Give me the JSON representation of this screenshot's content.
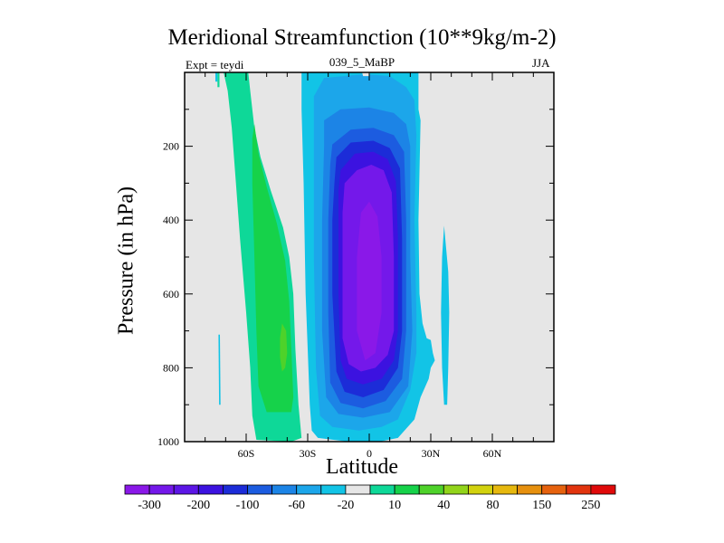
{
  "chart_data": {
    "type": "filled-contour",
    "title": "Meridional Streamfunction (10**9kg/m-2)",
    "subtitle_left": "Expt = teydi",
    "subtitle_center": "039_5_MaBP",
    "subtitle_right": "JJA",
    "xlabel": "Latitude",
    "ylabel": "Pressure (in hPa)",
    "xlim": [
      -90,
      90
    ],
    "ylim": [
      0,
      1000
    ],
    "x_ticks": [
      {
        "value": -60,
        "label": "60S"
      },
      {
        "value": -30,
        "label": "30S"
      },
      {
        "value": 0,
        "label": "0"
      },
      {
        "value": 30,
        "label": "30N"
      },
      {
        "value": 60,
        "label": "60N"
      }
    ],
    "y_ticks": [
      {
        "value": 200,
        "label": "200"
      },
      {
        "value": 400,
        "label": "400"
      },
      {
        "value": 600,
        "label": "600"
      },
      {
        "value": 800,
        "label": "800"
      },
      {
        "value": 1000,
        "label": "1000"
      }
    ],
    "background_color": "#e6e6e6",
    "colorbar": {
      "colors": [
        "#8a18e8",
        "#7418ea",
        "#5c16e6",
        "#3c12e0",
        "#1c2cd8",
        "#1c5ce0",
        "#1c84e6",
        "#1ca6ea",
        "#12c4e6",
        "#e6e6e6",
        "#0ed898",
        "#16d24a",
        "#4ed22a",
        "#92d41a",
        "#d2d20e",
        "#e6b80e",
        "#e6900e",
        "#e6620e",
        "#e2340e",
        "#e00a0a"
      ],
      "tick_labels": [
        {
          "index": 1,
          "label": "-300"
        },
        {
          "index": 3,
          "label": "-200"
        },
        {
          "index": 5,
          "label": "-100"
        },
        {
          "index": 7,
          "label": "-60"
        },
        {
          "index": 9,
          "label": "-20"
        },
        {
          "index": 11,
          "label": "10"
        },
        {
          "index": 13,
          "label": "40"
        },
        {
          "index": 15,
          "label": "80"
        },
        {
          "index": 17,
          "label": "150"
        },
        {
          "index": 19,
          "label": "250"
        }
      ]
    },
    "regions": [
      {
        "name": "north-cell-outer",
        "level": 10,
        "color": "#0ed898",
        "points": [
          [
            -71,
            0
          ],
          [
            -59,
            0
          ],
          [
            -58,
            50
          ],
          [
            -56,
            150
          ],
          [
            -53,
            230
          ],
          [
            -48,
            320
          ],
          [
            -42,
            420
          ],
          [
            -39,
            500
          ],
          [
            -37,
            600
          ],
          [
            -36,
            750
          ],
          [
            -34.5,
            900
          ],
          [
            -33,
            990
          ],
          [
            -38,
            1000
          ],
          [
            -55,
            995
          ],
          [
            -57,
            930
          ],
          [
            -58,
            800
          ],
          [
            -60,
            650
          ],
          [
            -63,
            450
          ],
          [
            -65,
            300
          ],
          [
            -67,
            150
          ],
          [
            -69,
            50
          ]
        ]
      },
      {
        "name": "north-cell-inner",
        "level": 40,
        "color": "#16d24a",
        "points": [
          [
            -56,
            140
          ],
          [
            -54,
            220
          ],
          [
            -50,
            310
          ],
          [
            -45,
            410
          ],
          [
            -41,
            510
          ],
          [
            -39,
            620
          ],
          [
            -38,
            750
          ],
          [
            -37,
            880
          ],
          [
            -38,
            920
          ],
          [
            -50,
            920
          ],
          [
            -54,
            850
          ],
          [
            -55,
            700
          ],
          [
            -56,
            500
          ],
          [
            -57,
            300
          ],
          [
            -57,
            180
          ]
        ]
      },
      {
        "name": "north-cell-core",
        "level": 80,
        "color": "#4ed22a",
        "points": [
          [
            -42.5,
            680
          ],
          [
            -40.5,
            700
          ],
          [
            -40,
            760
          ],
          [
            -41,
            800
          ],
          [
            -42.5,
            810
          ],
          [
            -43.5,
            770
          ],
          [
            -43.5,
            720
          ]
        ]
      },
      {
        "name": "south-cell-l1",
        "level": -20,
        "color": "#12c4e6",
        "points": [
          [
            -33,
            0
          ],
          [
            24,
            0
          ],
          [
            24,
            100
          ],
          [
            25,
            130
          ],
          [
            24,
            400
          ],
          [
            24.5,
            600
          ],
          [
            26,
            680
          ],
          [
            27,
            700
          ],
          [
            28,
            720
          ],
          [
            30,
            725
          ],
          [
            31,
            760
          ],
          [
            32,
            780
          ],
          [
            30,
            800
          ],
          [
            29,
            830
          ],
          [
            25,
            880
          ],
          [
            22,
            940
          ],
          [
            14,
            990
          ],
          [
            5,
            1000
          ],
          [
            -10,
            1000
          ],
          [
            -25,
            990
          ],
          [
            -28,
            970
          ],
          [
            -29,
            900
          ],
          [
            -31,
            600
          ],
          [
            -32,
            300
          ],
          [
            -33,
            100
          ]
        ]
      },
      {
        "name": "south-cell-l2",
        "level": -60,
        "color": "#1ca6ea",
        "points": [
          [
            -27,
            65
          ],
          [
            -22,
            15
          ],
          [
            -2,
            5
          ],
          [
            10,
            10
          ],
          [
            18,
            40
          ],
          [
            22,
            75
          ],
          [
            23,
            170
          ],
          [
            22,
            400
          ],
          [
            23,
            650
          ],
          [
            23,
            760
          ],
          [
            20,
            860
          ],
          [
            14,
            940
          ],
          [
            6,
            960
          ],
          [
            -5,
            970
          ],
          [
            -18,
            960
          ],
          [
            -24,
            930
          ],
          [
            -26,
            800
          ],
          [
            -27,
            500
          ],
          [
            -27,
            200
          ]
        ]
      },
      {
        "name": "south-cell-l3",
        "level": -100,
        "color": "#1c84e6",
        "points": [
          [
            -22,
            130
          ],
          [
            -14,
            100
          ],
          [
            0,
            95
          ],
          [
            12,
            110
          ],
          [
            18,
            140
          ],
          [
            20,
            200
          ],
          [
            20,
            500
          ],
          [
            21,
            700
          ],
          [
            19,
            850
          ],
          [
            10,
            920
          ],
          [
            -3,
            935
          ],
          [
            -15,
            925
          ],
          [
            -21,
            880
          ],
          [
            -23,
            700
          ],
          [
            -23,
            400
          ],
          [
            -22,
            200
          ]
        ]
      },
      {
        "name": "south-cell-l4",
        "level": -200,
        "color": "#1c5ce0",
        "points": [
          [
            -18,
            195
          ],
          [
            -9,
            155
          ],
          [
            2,
            150
          ],
          [
            12,
            170
          ],
          [
            17,
            215
          ],
          [
            18,
            400
          ],
          [
            18,
            700
          ],
          [
            16,
            830
          ],
          [
            8,
            890
          ],
          [
            -3,
            910
          ],
          [
            -14,
            895
          ],
          [
            -19,
            840
          ],
          [
            -20,
            650
          ],
          [
            -20,
            400
          ],
          [
            -19,
            250
          ]
        ]
      },
      {
        "name": "south-cell-l5",
        "level": -250,
        "color": "#1c2cd8",
        "points": [
          [
            -16,
            230
          ],
          [
            -9,
            190
          ],
          [
            2,
            185
          ],
          [
            10,
            205
          ],
          [
            15,
            260
          ],
          [
            16,
            450
          ],
          [
            16,
            700
          ],
          [
            14,
            800
          ],
          [
            7,
            860
          ],
          [
            -3,
            880
          ],
          [
            -12,
            865
          ],
          [
            -16,
            810
          ],
          [
            -18,
            600
          ],
          [
            -18,
            400
          ],
          [
            -17,
            300
          ]
        ]
      },
      {
        "name": "south-cell-l6",
        "level": -300,
        "color": "#3c12e0",
        "points": [
          [
            -14,
            265
          ],
          [
            -7,
            220
          ],
          [
            2,
            215
          ],
          [
            9,
            235
          ],
          [
            13,
            295
          ],
          [
            14,
            450
          ],
          [
            14,
            700
          ],
          [
            12,
            780
          ],
          [
            6,
            830
          ],
          [
            -3,
            845
          ],
          [
            -11,
            830
          ],
          [
            -14,
            780
          ],
          [
            -15,
            600
          ],
          [
            -15,
            400
          ],
          [
            -15,
            320
          ]
        ]
      },
      {
        "name": "south-cell-core",
        "level": -350,
        "color": "#7418ea",
        "points": [
          [
            -12,
            300
          ],
          [
            -6,
            265
          ],
          [
            1,
            250
          ],
          [
            7,
            265
          ],
          [
            11,
            325
          ],
          [
            12,
            500
          ],
          [
            12,
            700
          ],
          [
            9,
            765
          ],
          [
            3,
            800
          ],
          [
            -4,
            810
          ],
          [
            -10,
            790
          ],
          [
            -13,
            720
          ],
          [
            -13,
            500
          ],
          [
            -13,
            380
          ]
        ]
      },
      {
        "name": "south-cell-core-inner",
        "level": -400,
        "color": "#8a18e8",
        "points": [
          [
            -4,
            380
          ],
          [
            0,
            350
          ],
          [
            4,
            390
          ],
          [
            6,
            500
          ],
          [
            6,
            650
          ],
          [
            3,
            760
          ],
          [
            -2,
            780
          ],
          [
            -6,
            700
          ],
          [
            -6,
            500
          ]
        ]
      },
      {
        "name": "north-pole-sliver",
        "level": -20,
        "color": "#12c4e6",
        "points": [
          [
            -75,
            0
          ],
          [
            -74,
            0
          ],
          [
            -74,
            25
          ],
          [
            -75,
            25
          ]
        ]
      },
      {
        "name": "north-pole-blob",
        "level": 10,
        "color": "#0ed898",
        "points": [
          [
            -74,
            0
          ],
          [
            -73,
            0
          ],
          [
            -73,
            40
          ],
          [
            -74,
            40
          ]
        ]
      },
      {
        "name": "left-streak",
        "level": -20,
        "color": "#12c4e6",
        "points": [
          [
            -73.5,
            710
          ],
          [
            -72.8,
            710
          ],
          [
            -72.5,
            900
          ],
          [
            -73.2,
            900
          ]
        ]
      },
      {
        "name": "right-streak",
        "level": -20,
        "color": "#12c4e6",
        "points": [
          [
            36.5,
            415
          ],
          [
            38.5,
            540
          ],
          [
            39,
            650
          ],
          [
            38.5,
            800
          ],
          [
            38,
            900
          ],
          [
            36.5,
            900
          ],
          [
            35.5,
            800
          ],
          [
            35,
            650
          ],
          [
            35.5,
            500
          ]
        ]
      },
      {
        "name": "top-white-spot",
        "level": 0,
        "color": "#e6e6e6",
        "points": [
          [
            -3.5,
            0
          ],
          [
            0.5,
            0
          ],
          [
            0,
            10
          ],
          [
            -3,
            10
          ]
        ]
      }
    ]
  }
}
